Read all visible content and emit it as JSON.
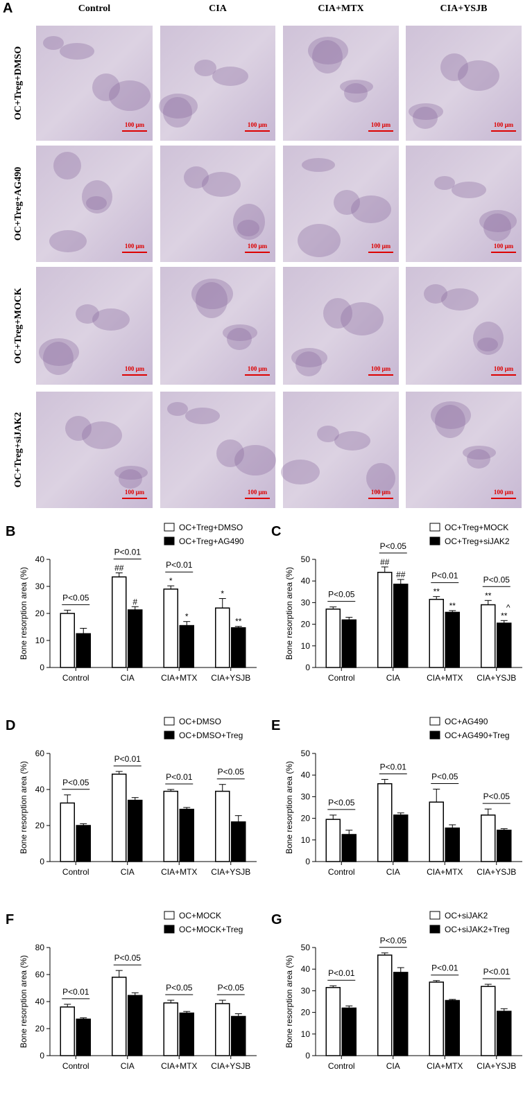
{
  "panel_a": {
    "label": "A",
    "columns": [
      "Control",
      "CIA",
      "CIA+MTX",
      "CIA+YSJB"
    ],
    "rows": [
      "OC+Treg+DMSO",
      "OC+Treg+AG490",
      "OC+Treg+MOCK",
      "OC+Treg+siJAK2"
    ],
    "scale_bar": "100 μm"
  },
  "chart_data": [
    {
      "type": "bar",
      "label": "B",
      "y_label": "Bone resorption area (%)",
      "categories": [
        "Control",
        "CIA",
        "CIA+MTX",
        "CIA+YSJB"
      ],
      "ylim": [
        0,
        40
      ],
      "yticks": [
        0,
        10,
        20,
        30,
        40
      ],
      "series": [
        {
          "name": "OC+Treg+DMSO",
          "color": "#ffffff",
          "values": [
            20,
            33.5,
            29,
            22
          ],
          "errors": [
            1.2,
            1.5,
            1.2,
            3.5
          ],
          "markers": [
            null,
            "##",
            "*",
            "*"
          ]
        },
        {
          "name": "OC+Treg+AG490",
          "color": "#000000",
          "values": [
            12.5,
            21.3,
            15.5,
            14.7
          ],
          "errors": [
            2,
            1.2,
            1.5,
            0.5
          ],
          "markers": [
            null,
            "#",
            "*",
            "**"
          ]
        }
      ],
      "p_labels": [
        "P<0.05",
        "P<0.01",
        "P<0.01",
        null
      ]
    },
    {
      "type": "bar",
      "label": "C",
      "y_label": "Bone resorption area (%)",
      "categories": [
        "Control",
        "CIA",
        "CIA+MTX",
        "CIA+YSJB"
      ],
      "ylim": [
        0,
        50
      ],
      "yticks": [
        0,
        10,
        20,
        30,
        40,
        50
      ],
      "series": [
        {
          "name": "OC+Treg+MOCK",
          "color": "#ffffff",
          "values": [
            27,
            44,
            31.5,
            29
          ],
          "errors": [
            1,
            2.5,
            1.3,
            2
          ],
          "markers": [
            null,
            "##",
            "**",
            "**"
          ]
        },
        {
          "name": "OC+Treg+siJAK2",
          "color": "#000000",
          "values": [
            22,
            38.5,
            25.5,
            20.5
          ],
          "errors": [
            1.2,
            2.2,
            0.8,
            1.2
          ],
          "markers": [
            null,
            "##",
            "**",
            "**"
          ]
        }
      ],
      "p_labels": [
        "P<0.05",
        "P<0.05",
        "P<0.01",
        "P<0.05"
      ],
      "annotation": "^"
    },
    {
      "type": "bar",
      "label": "D",
      "y_label": "Bone resorption area (%)",
      "categories": [
        "Control",
        "CIA",
        "CIA+MTX",
        "CIA+YSJB"
      ],
      "ylim": [
        0,
        60
      ],
      "yticks": [
        0,
        20,
        40,
        60
      ],
      "series": [
        {
          "name": "OC+DMSO",
          "color": "#ffffff",
          "values": [
            32.5,
            48.5,
            39,
            39
          ],
          "errors": [
            4.5,
            1.5,
            1,
            3.8
          ]
        },
        {
          "name": "OC+DMSO+Treg",
          "color": "#000000",
          "values": [
            20,
            34,
            29,
            22
          ],
          "errors": [
            1,
            1.5,
            1,
            3.5
          ]
        }
      ],
      "p_labels": [
        "P<0.05",
        "P<0.01",
        "P<0.01",
        "P<0.05"
      ]
    },
    {
      "type": "bar",
      "label": "E",
      "y_label": "Bone resorption area (%)",
      "categories": [
        "Control",
        "CIA",
        "CIA+MTX",
        "CIA+YSJB"
      ],
      "ylim": [
        0,
        50
      ],
      "yticks": [
        0,
        10,
        20,
        30,
        40,
        50
      ],
      "series": [
        {
          "name": "OC+AG490",
          "color": "#ffffff",
          "values": [
            19.5,
            36,
            27.5,
            21.5
          ],
          "errors": [
            2,
            2,
            6,
            2.8
          ]
        },
        {
          "name": "OC+AG490+Treg",
          "color": "#000000",
          "values": [
            12.5,
            21.5,
            15.5,
            14.5
          ],
          "errors": [
            2,
            1,
            1.5,
            0.7
          ]
        }
      ],
      "p_labels": [
        "P<0.05",
        "P<0.01",
        "P<0.05",
        "P<0.05"
      ]
    },
    {
      "type": "bar",
      "label": "F",
      "y_label": "Bone resorption area (%)",
      "categories": [
        "Control",
        "CIA",
        "CIA+MTX",
        "CIA+YSJB"
      ],
      "ylim": [
        0,
        80
      ],
      "yticks": [
        0,
        20,
        40,
        60,
        80
      ],
      "series": [
        {
          "name": "OC+MOCK",
          "color": "#ffffff",
          "values": [
            36,
            58,
            39,
            38.5
          ],
          "errors": [
            2,
            5,
            2,
            2.5
          ]
        },
        {
          "name": "OC+MOCK+Treg",
          "color": "#000000",
          "values": [
            27,
            44.5,
            31.5,
            29
          ],
          "errors": [
            1,
            2,
            1.2,
            2
          ]
        }
      ],
      "p_labels": [
        "P<0.01",
        "P<0.05",
        "P<0.05",
        "P<0.05"
      ]
    },
    {
      "type": "bar",
      "label": "G",
      "y_label": "Bone resorption area (%)",
      "categories": [
        "Control",
        "CIA",
        "CIA+MTX",
        "CIA+YSJB"
      ],
      "ylim": [
        0,
        50
      ],
      "yticks": [
        0,
        10,
        20,
        30,
        40,
        50
      ],
      "series": [
        {
          "name": "OC+siJAK2",
          "color": "#ffffff",
          "values": [
            31.5,
            46.5,
            34,
            32
          ],
          "errors": [
            0.8,
            1,
            0.7,
            1
          ]
        },
        {
          "name": "OC+siJAK2+Treg",
          "color": "#000000",
          "values": [
            22,
            38.5,
            25.5,
            20.5
          ],
          "errors": [
            1,
            2.2,
            0.5,
            1.2
          ]
        }
      ],
      "p_labels": [
        "P<0.01",
        "P<0.05",
        "P<0.01",
        "P<0.01"
      ]
    }
  ]
}
